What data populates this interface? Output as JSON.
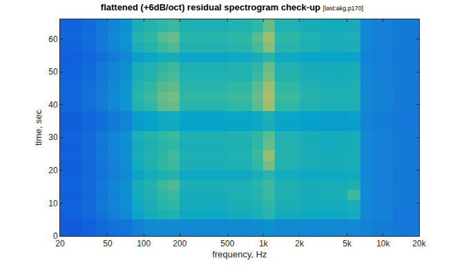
{
  "chart_data": {
    "type": "heatmap",
    "title": "flattened (+6dB/oct) residual spectrogram check-up",
    "subtitle": "[last:akg.p170]",
    "x_label": "frequency, Hz",
    "y_label": "time, sec",
    "log": "x",
    "grid": false,
    "xlim": [
      20,
      20000
    ],
    "xticks": [
      20,
      50,
      100,
      200,
      500,
      {
        "value": 1000,
        "label": "1k"
      },
      {
        "value": 2000,
        "label": "2k"
      },
      {
        "value": 5000,
        "label": "5k"
      },
      {
        "value": 10000,
        "label": "10k"
      },
      {
        "value": 20000,
        "label": "20k"
      }
    ],
    "ylim": [
      0,
      66
    ],
    "yticks": [
      0,
      10,
      20,
      30,
      40,
      50,
      60
    ],
    "zlim": [
      0,
      1
    ],
    "x_edges": [
      20,
      30,
      40,
      50,
      63,
      80,
      100,
      130,
      160,
      200,
      300,
      500,
      800,
      1000,
      1250,
      2000,
      3000,
      5000,
      6500,
      8000,
      12000,
      20000
    ],
    "y_edges": [
      0,
      2,
      5,
      8,
      11,
      14,
      17,
      20,
      23,
      26,
      29,
      32,
      35,
      38,
      41,
      44,
      47,
      50,
      53,
      56,
      59,
      62,
      66
    ],
    "z": [
      [
        0.13,
        0.15,
        0.17,
        0.19,
        0.2,
        0.24,
        0.27,
        0.28,
        0.28,
        0.27,
        0.27,
        0.27,
        0.28,
        0.3,
        0.28,
        0.27,
        0.27,
        0.27,
        0.26,
        0.24,
        0.22
      ],
      [
        0.12,
        0.14,
        0.17,
        0.2,
        0.21,
        0.25,
        0.28,
        0.29,
        0.28,
        0.28,
        0.27,
        0.28,
        0.29,
        0.31,
        0.28,
        0.28,
        0.27,
        0.28,
        0.25,
        0.24,
        0.22
      ],
      [
        0.14,
        0.17,
        0.2,
        0.24,
        0.28,
        0.38,
        0.42,
        0.45,
        0.46,
        0.4,
        0.4,
        0.42,
        0.44,
        0.48,
        0.42,
        0.4,
        0.4,
        0.42,
        0.27,
        0.25,
        0.22
      ],
      [
        0.15,
        0.18,
        0.22,
        0.26,
        0.3,
        0.4,
        0.44,
        0.48,
        0.5,
        0.42,
        0.42,
        0.44,
        0.46,
        0.5,
        0.44,
        0.42,
        0.42,
        0.44,
        0.27,
        0.25,
        0.23
      ],
      [
        0.14,
        0.17,
        0.21,
        0.25,
        0.3,
        0.42,
        0.45,
        0.5,
        0.52,
        0.43,
        0.43,
        0.45,
        0.47,
        0.52,
        0.45,
        0.43,
        0.44,
        0.52,
        0.28,
        0.25,
        0.23
      ],
      [
        0.15,
        0.18,
        0.22,
        0.26,
        0.31,
        0.43,
        0.46,
        0.52,
        0.55,
        0.44,
        0.44,
        0.45,
        0.48,
        0.52,
        0.45,
        0.43,
        0.43,
        0.45,
        0.28,
        0.25,
        0.23
      ],
      [
        0.14,
        0.17,
        0.2,
        0.24,
        0.28,
        0.38,
        0.42,
        0.45,
        0.47,
        0.4,
        0.4,
        0.41,
        0.44,
        0.48,
        0.42,
        0.4,
        0.4,
        0.41,
        0.27,
        0.25,
        0.22
      ],
      [
        0.14,
        0.17,
        0.21,
        0.25,
        0.3,
        0.42,
        0.45,
        0.5,
        0.52,
        0.44,
        0.44,
        0.45,
        0.5,
        0.6,
        0.46,
        0.43,
        0.43,
        0.44,
        0.27,
        0.25,
        0.23
      ],
      [
        0.15,
        0.18,
        0.22,
        0.26,
        0.3,
        0.43,
        0.46,
        0.5,
        0.53,
        0.45,
        0.45,
        0.46,
        0.52,
        0.65,
        0.47,
        0.44,
        0.43,
        0.44,
        0.27,
        0.25,
        0.23
      ],
      [
        0.14,
        0.17,
        0.21,
        0.25,
        0.3,
        0.42,
        0.45,
        0.48,
        0.5,
        0.44,
        0.44,
        0.45,
        0.5,
        0.58,
        0.46,
        0.43,
        0.42,
        0.43,
        0.27,
        0.25,
        0.23
      ],
      [
        0.15,
        0.18,
        0.22,
        0.26,
        0.31,
        0.44,
        0.47,
        0.5,
        0.52,
        0.45,
        0.45,
        0.46,
        0.5,
        0.56,
        0.46,
        0.43,
        0.42,
        0.43,
        0.27,
        0.25,
        0.23
      ],
      [
        0.14,
        0.16,
        0.19,
        0.22,
        0.26,
        0.34,
        0.37,
        0.4,
        0.41,
        0.37,
        0.37,
        0.38,
        0.4,
        0.44,
        0.38,
        0.36,
        0.35,
        0.36,
        0.26,
        0.24,
        0.22
      ],
      [
        0.14,
        0.16,
        0.19,
        0.23,
        0.26,
        0.35,
        0.38,
        0.4,
        0.42,
        0.38,
        0.38,
        0.39,
        0.41,
        0.45,
        0.39,
        0.37,
        0.36,
        0.37,
        0.26,
        0.24,
        0.22
      ],
      [
        0.16,
        0.19,
        0.23,
        0.27,
        0.32,
        0.46,
        0.5,
        0.56,
        0.58,
        0.48,
        0.48,
        0.5,
        0.56,
        0.66,
        0.5,
        0.46,
        0.44,
        0.45,
        0.28,
        0.25,
        0.23
      ],
      [
        0.16,
        0.2,
        0.24,
        0.28,
        0.33,
        0.48,
        0.52,
        0.58,
        0.6,
        0.5,
        0.5,
        0.52,
        0.58,
        0.68,
        0.52,
        0.47,
        0.45,
        0.46,
        0.28,
        0.26,
        0.23
      ],
      [
        0.16,
        0.19,
        0.23,
        0.27,
        0.32,
        0.46,
        0.5,
        0.55,
        0.57,
        0.48,
        0.48,
        0.5,
        0.56,
        0.66,
        0.5,
        0.46,
        0.44,
        0.45,
        0.28,
        0.25,
        0.23
      ],
      [
        0.15,
        0.18,
        0.22,
        0.26,
        0.31,
        0.44,
        0.47,
        0.52,
        0.54,
        0.46,
        0.46,
        0.47,
        0.52,
        0.6,
        0.47,
        0.44,
        0.43,
        0.44,
        0.27,
        0.25,
        0.23
      ],
      [
        0.15,
        0.18,
        0.22,
        0.26,
        0.3,
        0.43,
        0.46,
        0.5,
        0.52,
        0.45,
        0.45,
        0.46,
        0.5,
        0.58,
        0.46,
        0.43,
        0.42,
        0.43,
        0.27,
        0.25,
        0.23
      ],
      [
        0.14,
        0.16,
        0.19,
        0.23,
        0.27,
        0.36,
        0.39,
        0.42,
        0.43,
        0.39,
        0.39,
        0.4,
        0.43,
        0.48,
        0.4,
        0.38,
        0.37,
        0.38,
        0.26,
        0.24,
        0.22
      ],
      [
        0.15,
        0.18,
        0.22,
        0.26,
        0.31,
        0.44,
        0.47,
        0.52,
        0.55,
        0.46,
        0.46,
        0.48,
        0.54,
        0.62,
        0.48,
        0.45,
        0.43,
        0.44,
        0.27,
        0.25,
        0.23
      ],
      [
        0.16,
        0.19,
        0.23,
        0.27,
        0.32,
        0.47,
        0.5,
        0.56,
        0.58,
        0.48,
        0.48,
        0.5,
        0.56,
        0.66,
        0.5,
        0.46,
        0.44,
        0.45,
        0.28,
        0.25,
        0.23
      ],
      [
        0.15,
        0.18,
        0.22,
        0.26,
        0.31,
        0.44,
        0.47,
        0.5,
        0.52,
        0.45,
        0.45,
        0.46,
        0.5,
        0.58,
        0.46,
        0.43,
        0.42,
        0.43,
        0.27,
        0.25,
        0.23
      ]
    ]
  }
}
